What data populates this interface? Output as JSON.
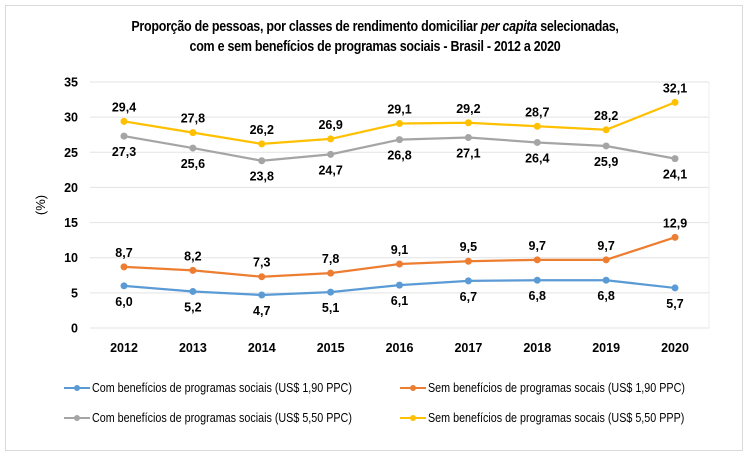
{
  "title": {
    "line1_prefix": "Proporção de pessoas, por classes de rendimento domiciliar ",
    "line1_italic": "per capita",
    "line1_suffix": " selecionadas,",
    "line2": "com e sem benefícios de programas sociais - Brasil - 2012 a 2020"
  },
  "chart_data": {
    "type": "line",
    "title": "Proporção de pessoas, por classes de rendimento domiciliar per capita selecionadas, com e sem benefícios de programas sociais - Brasil - 2012 a 2020",
    "xlabel": "",
    "ylabel": "(%)",
    "ylim": [
      0,
      35
    ],
    "yticks": [
      0,
      5,
      10,
      15,
      20,
      25,
      30,
      35
    ],
    "grid": true,
    "legend_position": "bottom",
    "categories": [
      "2012",
      "2013",
      "2014",
      "2015",
      "2016",
      "2017",
      "2018",
      "2019",
      "2020"
    ],
    "series": [
      {
        "name": "Com benefícios de programas sociais (US$ 1,90 PPC)",
        "color": "#5b9bd5",
        "label_position": "below",
        "values": [
          6.0,
          5.2,
          4.7,
          5.1,
          6.1,
          6.7,
          6.8,
          6.8,
          5.7
        ],
        "labels": [
          "6,0",
          "5,2",
          "4,7",
          "5,1",
          "6,1",
          "6,7",
          "6,8",
          "6,8",
          "5,7"
        ]
      },
      {
        "name": "Sem benefícios de programas socais (US$ 1,90 PPC)",
        "color": "#ed7d31",
        "label_position": "above",
        "values": [
          8.7,
          8.2,
          7.3,
          7.8,
          9.1,
          9.5,
          9.7,
          9.7,
          12.9
        ],
        "labels": [
          "8,7",
          "8,2",
          "7,3",
          "7,8",
          "9,1",
          "9,5",
          "9,7",
          "9,7",
          "12,9"
        ]
      },
      {
        "name": "Com benefícios de programas sociais (US$ 5,50 PPC)",
        "color": "#a5a5a5",
        "label_position": "below",
        "values": [
          27.3,
          25.6,
          23.8,
          24.7,
          26.8,
          27.1,
          26.4,
          25.9,
          24.1
        ],
        "labels": [
          "27,3",
          "25,6",
          "23,8",
          "24,7",
          "26,8",
          "27,1",
          "26,4",
          "25,9",
          "24,1"
        ]
      },
      {
        "name": "Sem benefícios de programas socais (US$ 5,50 PPP)",
        "color": "#ffc000",
        "label_position": "above",
        "values": [
          29.4,
          27.8,
          26.2,
          26.9,
          29.1,
          29.2,
          28.7,
          28.2,
          32.1
        ],
        "labels": [
          "29,4",
          "27,8",
          "26,2",
          "26,9",
          "29,1",
          "29,2",
          "28,7",
          "28,2",
          "32,1"
        ]
      }
    ]
  },
  "legend": {
    "items": [
      {
        "label": "Com benefícios de programas sociais (US$ 1,90 PPC)",
        "color": "#5b9bd5"
      },
      {
        "label": "Sem benefícios de programas socais (US$ 1,90 PPC)",
        "color": "#ed7d31"
      },
      {
        "label": "Com benefícios de programas sociais (US$ 5,50 PPC)",
        "color": "#a5a5a5"
      },
      {
        "label": "Sem benefícios de programas socais (US$ 5,50 PPP)",
        "color": "#ffc000"
      }
    ]
  }
}
